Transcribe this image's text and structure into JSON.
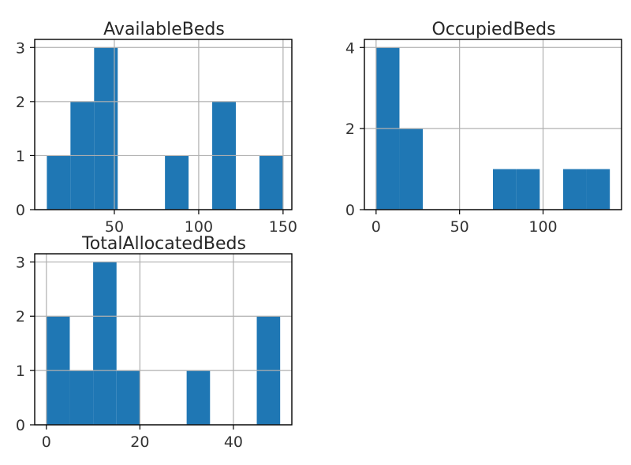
{
  "chart_data": [
    {
      "type": "bar",
      "title": "AvailableBeds",
      "xlabel": "",
      "ylabel": "",
      "xlim": [
        2.8,
        155.2
      ],
      "ylim": [
        0,
        3.15
      ],
      "xticks": [
        50,
        100,
        150
      ],
      "yticks": [
        0,
        1,
        2,
        3
      ],
      "grid": true,
      "bars": [
        {
          "x0": 10.0,
          "x1": 24.0,
          "count": 1
        },
        {
          "x0": 24.0,
          "x1": 38.0,
          "count": 2
        },
        {
          "x0": 38.0,
          "x1": 52.0,
          "count": 3
        },
        {
          "x0": 52.0,
          "x1": 66.0,
          "count": 0
        },
        {
          "x0": 66.0,
          "x1": 80.0,
          "count": 0
        },
        {
          "x0": 80.0,
          "x1": 94.0,
          "count": 1
        },
        {
          "x0": 94.0,
          "x1": 108.0,
          "count": 0
        },
        {
          "x0": 108.0,
          "x1": 122.0,
          "count": 2
        },
        {
          "x0": 122.0,
          "x1": 136.0,
          "count": 0
        },
        {
          "x0": 136.0,
          "x1": 150.0,
          "count": 1
        }
      ]
    },
    {
      "type": "bar",
      "title": "OccupiedBeds",
      "xlabel": "",
      "ylabel": "",
      "xlim": [
        -7.0,
        147.0
      ],
      "ylim": [
        0,
        4.2
      ],
      "xticks": [
        0,
        50,
        100
      ],
      "yticks": [
        0,
        2,
        4
      ],
      "grid": true,
      "bars": [
        {
          "x0": 0.0,
          "x1": 14.0,
          "count": 4
        },
        {
          "x0": 14.0,
          "x1": 28.0,
          "count": 2
        },
        {
          "x0": 28.0,
          "x1": 42.0,
          "count": 0
        },
        {
          "x0": 42.0,
          "x1": 56.0,
          "count": 0
        },
        {
          "x0": 56.0,
          "x1": 70.0,
          "count": 0
        },
        {
          "x0": 70.0,
          "x1": 84.0,
          "count": 1
        },
        {
          "x0": 84.0,
          "x1": 98.0,
          "count": 1
        },
        {
          "x0": 98.0,
          "x1": 112.0,
          "count": 0
        },
        {
          "x0": 112.0,
          "x1": 126.0,
          "count": 1
        },
        {
          "x0": 126.0,
          "x1": 140.0,
          "count": 1
        }
      ]
    },
    {
      "type": "bar",
      "title": "TotalAllocatedBeds",
      "xlabel": "",
      "ylabel": "",
      "xlim": [
        -2.5,
        52.5
      ],
      "ylim": [
        0,
        3.15
      ],
      "xticks": [
        0,
        20,
        40
      ],
      "yticks": [
        0,
        1,
        2,
        3
      ],
      "grid": true,
      "bars": [
        {
          "x0": 0.0,
          "x1": 5.0,
          "count": 2
        },
        {
          "x0": 5.0,
          "x1": 10.0,
          "count": 1
        },
        {
          "x0": 10.0,
          "x1": 15.0,
          "count": 3
        },
        {
          "x0": 15.0,
          "x1": 20.0,
          "count": 1
        },
        {
          "x0": 20.0,
          "x1": 25.0,
          "count": 0
        },
        {
          "x0": 25.0,
          "x1": 30.0,
          "count": 0
        },
        {
          "x0": 30.0,
          "x1": 35.0,
          "count": 1
        },
        {
          "x0": 35.0,
          "x1": 40.0,
          "count": 0
        },
        {
          "x0": 40.0,
          "x1": 45.0,
          "count": 0
        },
        {
          "x0": 45.0,
          "x1": 50.0,
          "count": 2
        }
      ]
    }
  ],
  "colors": {
    "bar": "#1f77b4",
    "grid": "#b0b0b0",
    "axes": "#000000"
  }
}
